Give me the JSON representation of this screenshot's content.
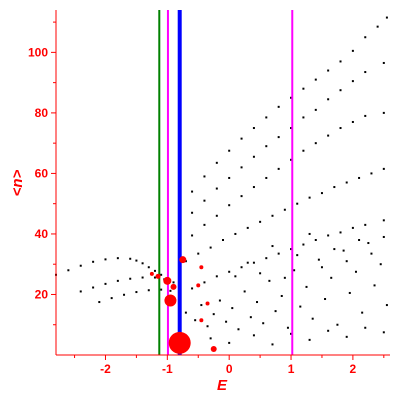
{
  "chart_data": {
    "type": "scatter",
    "xlabel": "E",
    "ylabel": "<n>",
    "xlim": [
      -2.8,
      2.6
    ],
    "ylim": [
      0,
      114
    ],
    "x_ticks": [
      -2,
      -1,
      0,
      1,
      2
    ],
    "x_tick_labels": [
      "-2",
      "-1",
      "0",
      "1",
      "2"
    ],
    "y_ticks": [
      20,
      40,
      60,
      80,
      100
    ],
    "y_tick_labels": [
      "20",
      "40",
      "60",
      "80",
      "100"
    ],
    "grid": false,
    "colors": {
      "axis": "#ff0000",
      "points": "#000000",
      "highlight": "#ff0000",
      "line_green": "#008000",
      "line_magenta": "#ff00ff",
      "line_blue": "#0000ff"
    },
    "vertical_lines": [
      {
        "x": -1.13,
        "color": "#008000",
        "weight": "thin"
      },
      {
        "x": -0.99,
        "color": "#ff00ff",
        "weight": "thin"
      },
      {
        "x": -0.8,
        "color": "#0000ff",
        "weight": "thick"
      },
      {
        "x": 1.02,
        "color": "#ff00ff",
        "weight": "thin"
      }
    ],
    "series": [
      {
        "values": [
          [
            -2.8,
            26.5
          ],
          [
            -2.6,
            28.0
          ],
          [
            -2.4,
            29.5
          ],
          [
            -2.2,
            30.8
          ],
          [
            -2.0,
            31.6
          ],
          [
            -1.8,
            32.0
          ],
          [
            -1.6,
            31.8
          ],
          [
            -1.5,
            31.2
          ],
          [
            -1.4,
            30.3
          ],
          [
            -1.3,
            29.0
          ],
          [
            -1.2,
            27.8
          ],
          [
            -1.1,
            26.5
          ],
          [
            -1.0,
            25.0
          ],
          [
            -2.4,
            21.0
          ],
          [
            -2.2,
            22.3
          ],
          [
            -2.0,
            23.5
          ],
          [
            -1.8,
            24.5
          ],
          [
            -1.6,
            25.2
          ],
          [
            -1.4,
            25.6
          ],
          [
            -1.2,
            25.6
          ],
          [
            -1.05,
            25.0
          ],
          [
            -0.9,
            24.0
          ],
          [
            -2.1,
            17.5
          ],
          [
            -1.9,
            18.8
          ],
          [
            -1.7,
            19.9
          ],
          [
            -1.5,
            20.8
          ],
          [
            -1.3,
            21.4
          ],
          [
            -1.1,
            21.6
          ],
          [
            -0.95,
            21.2
          ],
          [
            -0.8,
            20.5
          ],
          [
            -0.8,
            48.5
          ],
          [
            -0.6,
            54.0
          ],
          [
            -0.4,
            59.0
          ],
          [
            -0.2,
            63.5
          ],
          [
            0.0,
            67.5
          ],
          [
            0.2,
            71.5
          ],
          [
            0.4,
            75.0
          ],
          [
            0.6,
            78.5
          ],
          [
            0.8,
            82.0
          ],
          [
            1.0,
            85.0
          ],
          [
            1.2,
            88.0
          ],
          [
            1.4,
            91.0
          ],
          [
            1.6,
            94.0
          ],
          [
            1.8,
            97.0
          ],
          [
            2.0,
            100.5
          ],
          [
            2.2,
            105.0
          ],
          [
            2.4,
            108.5
          ],
          [
            2.55,
            111.5
          ],
          [
            -0.8,
            42.5
          ],
          [
            -0.6,
            47.0
          ],
          [
            -0.4,
            51.0
          ],
          [
            -0.2,
            55.0
          ],
          [
            0.0,
            58.5
          ],
          [
            0.2,
            62.0
          ],
          [
            0.4,
            65.5
          ],
          [
            0.6,
            69.0
          ],
          [
            0.8,
            72.0
          ],
          [
            1.0,
            75.0
          ],
          [
            1.2,
            78.5
          ],
          [
            1.4,
            81.0
          ],
          [
            1.6,
            84.5
          ],
          [
            1.8,
            87.5
          ],
          [
            2.0,
            90.5
          ],
          [
            2.2,
            93.5
          ],
          [
            2.5,
            96.5
          ],
          [
            -0.8,
            36.0
          ],
          [
            -0.6,
            39.5
          ],
          [
            -0.4,
            43.0
          ],
          [
            -0.2,
            46.0
          ],
          [
            0.0,
            49.5
          ],
          [
            0.2,
            52.5
          ],
          [
            0.4,
            55.5
          ],
          [
            0.6,
            58.5
          ],
          [
            0.8,
            61.5
          ],
          [
            1.0,
            64.5
          ],
          [
            1.2,
            67.5
          ],
          [
            1.4,
            70.0
          ],
          [
            1.6,
            72.5
          ],
          [
            1.8,
            75.0
          ],
          [
            2.0,
            77.0
          ],
          [
            2.2,
            79.0
          ],
          [
            2.5,
            80.0
          ],
          [
            -0.7,
            31.0
          ],
          [
            -0.5,
            33.5
          ],
          [
            -0.3,
            35.5
          ],
          [
            -0.1,
            38.0
          ],
          [
            0.1,
            40.0
          ],
          [
            0.3,
            42.0
          ],
          [
            0.5,
            44.0
          ],
          [
            0.7,
            46.0
          ],
          [
            0.9,
            48.0
          ],
          [
            1.1,
            50.0
          ],
          [
            1.3,
            52.0
          ],
          [
            1.5,
            53.5
          ],
          [
            1.7,
            55.5
          ],
          [
            1.9,
            57.0
          ],
          [
            2.1,
            58.5
          ],
          [
            2.3,
            60.0
          ],
          [
            2.5,
            61.5
          ],
          [
            -0.6,
            22.0
          ],
          [
            -0.4,
            24.0
          ],
          [
            -0.2,
            26.0
          ],
          [
            0.0,
            27.5
          ],
          [
            0.2,
            29.0
          ],
          [
            0.4,
            30.5
          ],
          [
            0.6,
            32.0
          ],
          [
            0.8,
            33.5
          ],
          [
            1.0,
            35.0
          ],
          [
            1.2,
            36.5
          ],
          [
            1.4,
            38.0
          ],
          [
            1.6,
            39.5
          ],
          [
            1.8,
            40.5
          ],
          [
            2.0,
            42.0
          ],
          [
            2.2,
            43.0
          ],
          [
            2.5,
            44.5
          ],
          [
            -0.7,
            14.0
          ],
          [
            -0.55,
            11.5
          ],
          [
            -0.45,
            16.5
          ],
          [
            -0.35,
            9.5
          ],
          [
            -0.25,
            13.5
          ],
          [
            -0.15,
            18.0
          ],
          [
            -0.05,
            11.0
          ],
          [
            0.05,
            15.5
          ],
          [
            0.15,
            8.5
          ],
          [
            0.25,
            21.0
          ],
          [
            0.35,
            12.5
          ],
          [
            0.45,
            17.5
          ],
          [
            0.55,
            10.5
          ],
          [
            0.65,
            24.5
          ],
          [
            0.75,
            14.5
          ],
          [
            0.85,
            19.5
          ],
          [
            0.95,
            9.0
          ],
          [
            1.05,
            28.0
          ],
          [
            1.15,
            16.0
          ],
          [
            1.25,
            22.5
          ],
          [
            1.35,
            12.0
          ],
          [
            1.45,
            31.5
          ],
          [
            1.55,
            18.5
          ],
          [
            1.65,
            25.5
          ],
          [
            1.75,
            10.0
          ],
          [
            1.85,
            34.5
          ],
          [
            1.95,
            20.5
          ],
          [
            2.05,
            27.5
          ],
          [
            2.15,
            14.0
          ],
          [
            2.25,
            37.0
          ],
          [
            2.35,
            23.0
          ],
          [
            2.45,
            30.0
          ],
          [
            2.55,
            16.5
          ],
          [
            0.1,
            26.0
          ],
          [
            0.3,
            30.5
          ],
          [
            0.5,
            27.0
          ],
          [
            0.7,
            36.0
          ],
          [
            0.9,
            25.5
          ],
          [
            1.1,
            33.0
          ],
          [
            1.3,
            40.0
          ],
          [
            1.5,
            29.0
          ],
          [
            1.7,
            35.0
          ],
          [
            1.9,
            31.0
          ],
          [
            2.1,
            38.0
          ],
          [
            2.3,
            33.5
          ],
          [
            2.5,
            39.0
          ],
          [
            -0.3,
            5.5
          ],
          [
            0.0,
            4.0
          ],
          [
            0.4,
            6.5
          ],
          [
            0.7,
            3.5
          ],
          [
            1.0,
            7.0
          ],
          [
            1.3,
            5.0
          ],
          [
            1.6,
            8.0
          ],
          [
            1.9,
            6.0
          ],
          [
            2.2,
            9.0
          ],
          [
            2.5,
            7.5
          ]
        ]
      },
      {
        "values": [
          [
            -0.8,
            4.0,
            11
          ],
          [
            -0.75,
            31.5,
            3.5
          ],
          [
            -0.95,
            18.0,
            6
          ],
          [
            -1.0,
            24.5,
            4
          ],
          [
            -0.9,
            22.5,
            3
          ],
          [
            -1.15,
            26.0,
            2.5
          ],
          [
            -0.45,
            29.0,
            2
          ],
          [
            -0.5,
            23.0,
            2
          ],
          [
            -0.35,
            17.0,
            2
          ],
          [
            -0.45,
            11.5,
            2
          ],
          [
            -0.25,
            2.0,
            3
          ],
          [
            -1.25,
            26.8,
            2
          ]
        ]
      }
    ]
  }
}
